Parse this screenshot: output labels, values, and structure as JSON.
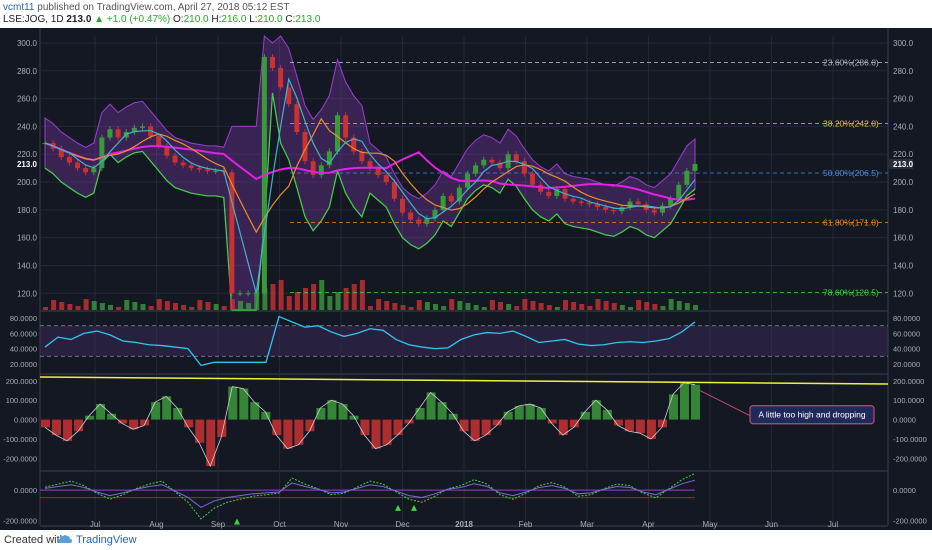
{
  "header": {
    "user": "vcmt11",
    "published": "published on TradingView.com, April 27, 2018 05:12 EST",
    "symbol": "LSE:JOG, 1D",
    "price": "213.0",
    "change": "▲ +1.0 (+0.47%)",
    "o_label": "O:",
    "o_value": "210.0",
    "h_label": "H:",
    "h_value": "216.0",
    "l_label": "L:",
    "l_value": "210.0",
    "c_label": "C:",
    "c_value": "213.0"
  },
  "footer": {
    "created": "Created with",
    "brand": "TradingView"
  },
  "colors": {
    "background": "#141823",
    "grid": "#232838",
    "ma_magenta": "#e61ee6",
    "ma_orange": "#e8902a",
    "ma_cyan": "#3fb3c8",
    "band_green": "#3fd43f",
    "band_purple": "#9a3fcf",
    "rsi_line": "#30c4f0",
    "yellow_line": "#f2f23a",
    "up": "#3a9a3a",
    "down": "#c83232"
  },
  "chart_data": [
    {
      "type": "candlestick",
      "panel": "price",
      "y_ticks": [
        "300.0",
        "280.0",
        "260.0",
        "240.0",
        "220.0",
        "200.0",
        "180.0",
        "160.0",
        "140.0",
        "120.0"
      ],
      "ylim": [
        108,
        305
      ],
      "last_price_label": "213.0",
      "fib_levels": [
        {
          "label": "23.60%(286.0)",
          "value": 286.0,
          "color": "#aab0bf"
        },
        {
          "label": "38.20%(242.0)",
          "value": 242.0,
          "color": "#e8c030"
        },
        {
          "label": "50.00%(206.5)",
          "value": 206.5,
          "color": "#4a8ad8"
        },
        {
          "label": "61.80%(171.0)",
          "value": 171.0,
          "color": "#e88a20"
        },
        {
          "label": "78.60%(120.5)",
          "value": 120.5,
          "color": "#4ad04a"
        }
      ],
      "x_labels": [
        "Jul",
        "Aug",
        "Sep",
        "Oct",
        "Nov",
        "Dec",
        "2018",
        "Feb",
        "Mar",
        "Apr",
        "May",
        "Jun",
        "Jul"
      ],
      "closes": [
        228,
        224,
        218,
        214,
        210,
        207,
        210,
        232,
        238,
        232,
        236,
        239,
        240,
        233,
        226,
        219,
        214,
        212,
        210,
        209,
        208,
        208,
        207,
        120,
        120,
        120,
        120,
        290,
        282,
        268,
        256,
        236,
        215,
        205,
        212,
        222,
        248,
        232,
        222,
        215,
        210,
        205,
        200,
        188,
        178,
        173,
        170,
        174,
        180,
        190,
        186,
        196,
        206,
        212,
        216,
        214,
        210,
        220,
        215,
        206,
        198,
        193,
        190,
        195,
        188,
        186,
        185,
        184,
        182,
        180,
        179,
        182,
        186,
        184,
        180,
        178,
        183,
        188,
        198,
        208,
        213
      ]
    },
    {
      "type": "line",
      "panel": "RSI",
      "y_ticks": [
        "80.0000",
        "60.0000",
        "40.0000",
        "20.0000"
      ],
      "ylim": [
        8,
        88
      ],
      "upper_band": 70,
      "lower_band": 30,
      "values": [
        42,
        55,
        52,
        60,
        63,
        58,
        50,
        48,
        45,
        44,
        42,
        40,
        18,
        22,
        22,
        22,
        22,
        22,
        82,
        75,
        68,
        70,
        62,
        56,
        60,
        66,
        64,
        52,
        45,
        42,
        40,
        41,
        52,
        58,
        61,
        60,
        63,
        56,
        48,
        50,
        52,
        46,
        44,
        45,
        48,
        49,
        48,
        50,
        53,
        62,
        75
      ]
    },
    {
      "type": "histogram",
      "panel": "momentum",
      "y_ticks": [
        "200.0000",
        "100.0000",
        "0.0000",
        "-100.0000",
        "-200.0000"
      ],
      "ylim": [
        -260,
        230
      ],
      "trendline_label": "",
      "annotation": "A little too high and dropping",
      "values": [
        -40,
        -80,
        -110,
        -60,
        20,
        80,
        30,
        -20,
        -50,
        -30,
        90,
        120,
        60,
        -40,
        -120,
        -240,
        -90,
        170,
        160,
        90,
        40,
        -80,
        -150,
        -130,
        -60,
        60,
        100,
        80,
        20,
        -80,
        -150,
        -130,
        -80,
        -20,
        60,
        140,
        90,
        30,
        -60,
        -110,
        -80,
        -30,
        40,
        70,
        80,
        60,
        -20,
        -80,
        -40,
        40,
        100,
        50,
        -30,
        -60,
        -70,
        -100,
        -40,
        130,
        190,
        180
      ]
    },
    {
      "type": "line",
      "panel": "oscillator",
      "y_ticks": [
        "0.0000",
        "-200.0000"
      ],
      "ylim": [
        -230,
        120
      ],
      "values": [
        20,
        40,
        60,
        30,
        -20,
        -60,
        -30,
        10,
        40,
        60,
        -10,
        -80,
        -190,
        -120,
        -80,
        -60,
        -40,
        -30,
        -20,
        80,
        40,
        10,
        -30,
        -20,
        20,
        60,
        40,
        -10,
        -60,
        -80,
        -40,
        10,
        30,
        70,
        40,
        -30,
        -60,
        -20,
        30,
        50,
        20,
        -40,
        -30,
        10,
        40,
        30,
        -20,
        -50,
        10,
        70,
        110
      ]
    }
  ]
}
